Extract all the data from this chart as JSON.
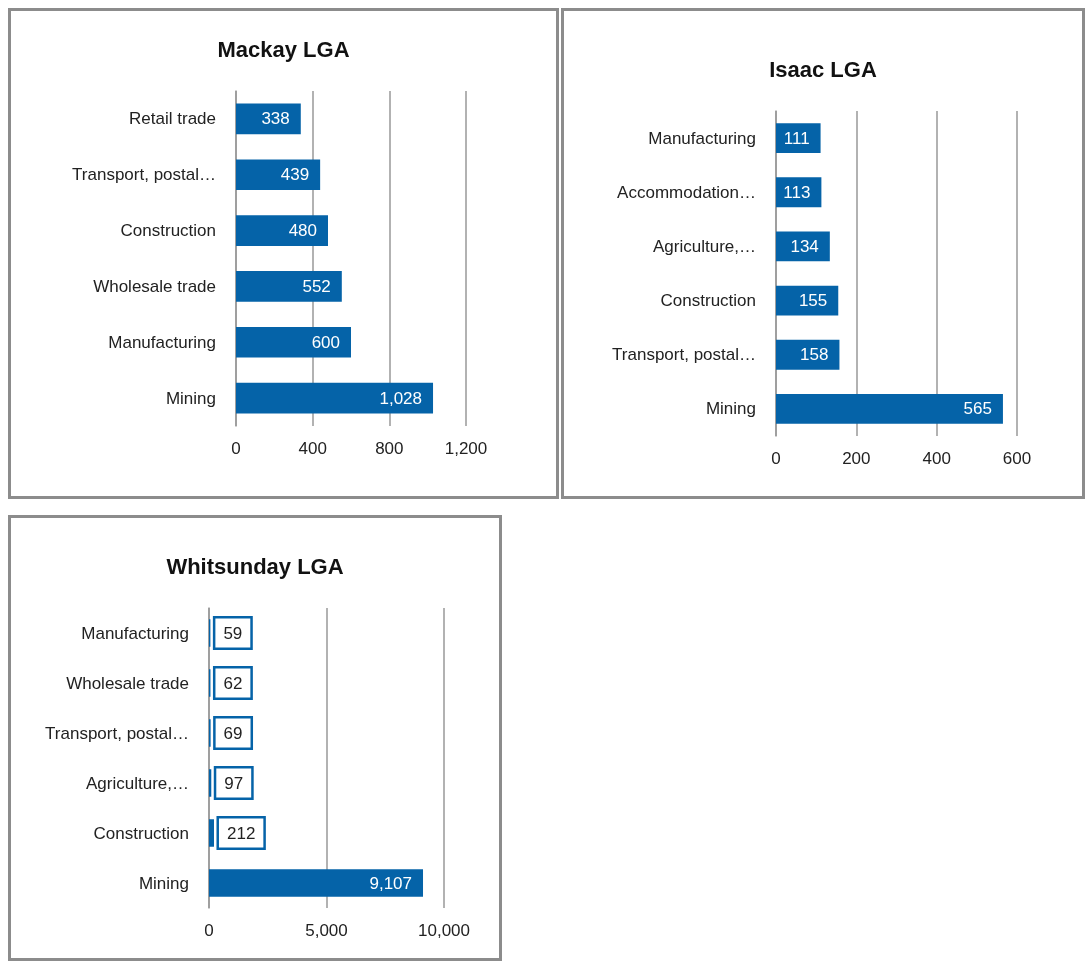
{
  "chart_data": [
    {
      "type": "bar",
      "orientation": "horizontal",
      "title": "Mackay LGA",
      "categories": [
        "Retail trade",
        "Transport, postal…",
        "Construction",
        "Wholesale trade",
        "Manufacturing",
        "Mining"
      ],
      "values": [
        338,
        439,
        480,
        552,
        600,
        1028
      ],
      "value_labels": [
        "338",
        "439",
        "480",
        "552",
        "600",
        "1,028"
      ],
      "color": "#0563a8",
      "xlim": [
        0,
        1200
      ],
      "xticks": [
        0,
        400,
        800,
        {
          "value": 1200,
          "label": "1,200"
        }
      ],
      "grid": "x"
    },
    {
      "type": "bar",
      "orientation": "horizontal",
      "title": "Isaac LGA",
      "categories": [
        "Manufacturing",
        "Accommodation…",
        "Agriculture,…",
        "Construction",
        "Transport, postal…",
        "Mining"
      ],
      "values": [
        111,
        113,
        134,
        155,
        158,
        565
      ],
      "value_labels": [
        "111",
        "113",
        "134",
        "155",
        "158",
        "565"
      ],
      "color": "#0563a8",
      "xlim": [
        0,
        600
      ],
      "xticks": [
        0,
        200,
        400,
        600
      ],
      "grid": "x"
    },
    {
      "type": "bar",
      "orientation": "horizontal",
      "title": "Whitsunday LGA",
      "categories": [
        "Manufacturing",
        "Wholesale trade",
        "Transport, postal…",
        "Agriculture,…",
        "Construction",
        "Mining"
      ],
      "values": [
        59,
        62,
        69,
        97,
        212,
        9107
      ],
      "value_labels": [
        "59",
        "62",
        "69",
        "97",
        "212",
        "9,107"
      ],
      "color": "#0563a8",
      "xlim": [
        0,
        10000
      ],
      "xticks": [
        0,
        {
          "value": 5000,
          "label": "5,000"
        },
        {
          "value": 10000,
          "label": "10,000"
        }
      ],
      "grid": "x"
    }
  ]
}
